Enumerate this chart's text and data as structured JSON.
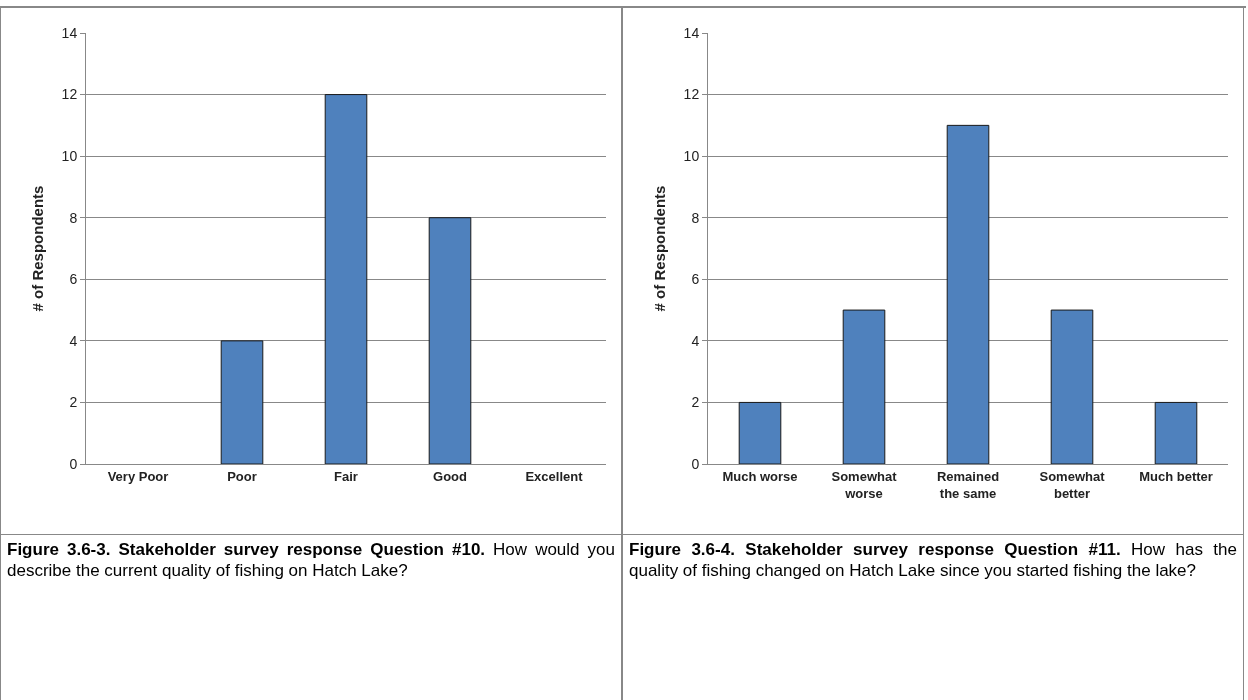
{
  "chart_data": [
    {
      "type": "bar",
      "title": "Figure 3.6-3.   Stakeholder survey response Question #10.",
      "subtitle": "How would you describe the current quality of fishing on Hatch Lake?",
      "ylabel": "# of Respondents",
      "categories": [
        "Very Poor",
        "Poor",
        "Fair",
        "Good",
        "Excellent"
      ],
      "values": [
        0,
        4,
        12,
        8,
        0
      ],
      "color": "#4f81bd",
      "ylim": [
        0,
        14
      ],
      "yticks": [
        0,
        2,
        4,
        6,
        8,
        10,
        12,
        14
      ],
      "grid": "y"
    },
    {
      "type": "bar",
      "title": "Figure 3.6-4.   Stakeholder survey response Question #11.",
      "subtitle": "How has the quality of fishing changed on Hatch Lake since you started fishing the lake?",
      "ylabel": "# of Respondents",
      "categories": [
        "Much worse",
        "Somewhat worse",
        "Remained the same",
        "Somewhat better",
        "Much better"
      ],
      "values": [
        2,
        5,
        11,
        5,
        2
      ],
      "color": "#4f81bd",
      "ylim": [
        0,
        14
      ],
      "yticks": [
        0,
        2,
        4,
        6,
        8,
        10,
        12,
        14
      ],
      "grid": "y"
    }
  ]
}
